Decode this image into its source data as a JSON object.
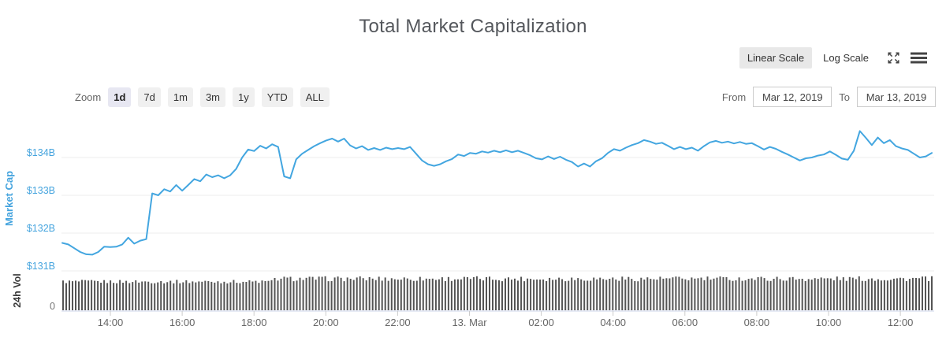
{
  "title": "Total Market Capitalization",
  "scale_toggle": {
    "linear_label": "Linear Scale",
    "log_label": "Log Scale",
    "active": "Linear Scale"
  },
  "zoom_bar": {
    "label": "Zoom",
    "buttons": [
      "1d",
      "7d",
      "1m",
      "3m",
      "1y",
      "YTD",
      "ALL"
    ],
    "active": "1d"
  },
  "date_range": {
    "from_label": "From",
    "from_value": "Mar 12, 2019",
    "to_label": "To",
    "to_value": "Mar 13, 2019"
  },
  "chart_data": {
    "type": "line",
    "title": "Total Market Capitalization",
    "ylabel": "Market Cap",
    "y2label": "24h Vol",
    "unit": "USD billions",
    "grid": "horizontal",
    "y_ticks": [
      {
        "label": "$134B",
        "value": 134
      },
      {
        "label": "$133B",
        "value": 133
      },
      {
        "label": "$132B",
        "value": 132
      },
      {
        "label": "$131B",
        "value": 131
      }
    ],
    "y2_ticks": [
      {
        "label": "0",
        "value": 0
      }
    ],
    "x_ticks": [
      "14:00",
      "16:00",
      "18:00",
      "20:00",
      "22:00",
      "13. Mar",
      "02:00",
      "04:00",
      "06:00",
      "08:00",
      "10:00",
      "12:00"
    ],
    "line_series": {
      "name": "Market Cap",
      "color": "#43a6e0",
      "start_time": "12:40",
      "step_minutes": 10,
      "values": [
        131.74,
        131.7,
        131.6,
        131.5,
        131.44,
        131.43,
        131.5,
        131.64,
        131.63,
        131.64,
        131.7,
        131.88,
        131.72,
        131.8,
        131.84,
        133.05,
        133.0,
        133.16,
        133.1,
        133.27,
        133.12,
        133.27,
        133.43,
        133.37,
        133.55,
        133.48,
        133.53,
        133.45,
        133.53,
        133.7,
        134.0,
        134.21,
        134.17,
        134.31,
        134.24,
        134.35,
        134.28,
        133.5,
        133.45,
        133.95,
        134.1,
        134.2,
        134.3,
        134.38,
        134.45,
        134.5,
        134.42,
        134.5,
        134.32,
        134.24,
        134.3,
        134.2,
        134.25,
        134.2,
        134.26,
        134.22,
        134.25,
        134.22,
        134.28,
        134.1,
        133.92,
        133.82,
        133.78,
        133.82,
        133.9,
        133.96,
        134.08,
        134.04,
        134.12,
        134.1,
        134.16,
        134.13,
        134.18,
        134.14,
        134.19,
        134.14,
        134.18,
        134.12,
        134.06,
        133.98,
        133.95,
        134.03,
        133.96,
        134.02,
        133.94,
        133.88,
        133.76,
        133.84,
        133.76,
        133.9,
        133.98,
        134.12,
        134.22,
        134.18,
        134.26,
        134.33,
        134.38,
        134.46,
        134.42,
        134.36,
        134.39,
        134.31,
        134.22,
        134.28,
        134.22,
        134.26,
        134.18,
        134.3,
        134.4,
        134.44,
        134.39,
        134.42,
        134.37,
        134.41,
        134.36,
        134.38,
        134.3,
        134.21,
        134.28,
        134.23,
        134.15,
        134.08,
        134.0,
        133.92,
        133.98,
        134.0,
        134.05,
        134.08,
        134.16,
        134.07,
        133.97,
        133.94,
        134.18,
        134.7,
        134.52,
        134.33,
        134.53,
        134.38,
        134.46,
        134.3,
        134.24,
        134.2,
        134.1,
        134.0,
        134.03,
        134.12
      ]
    },
    "volume_series": {
      "name": "24h Vol",
      "color": "#545454",
      "baseline_value": 0,
      "count": 276,
      "segments": [
        {
          "until_frac": 0.24,
          "min_frac": 0.74,
          "max_frac": 0.84
        },
        {
          "until_frac": 1.0,
          "min_frac": 0.8,
          "max_frac": 0.94
        }
      ]
    }
  }
}
